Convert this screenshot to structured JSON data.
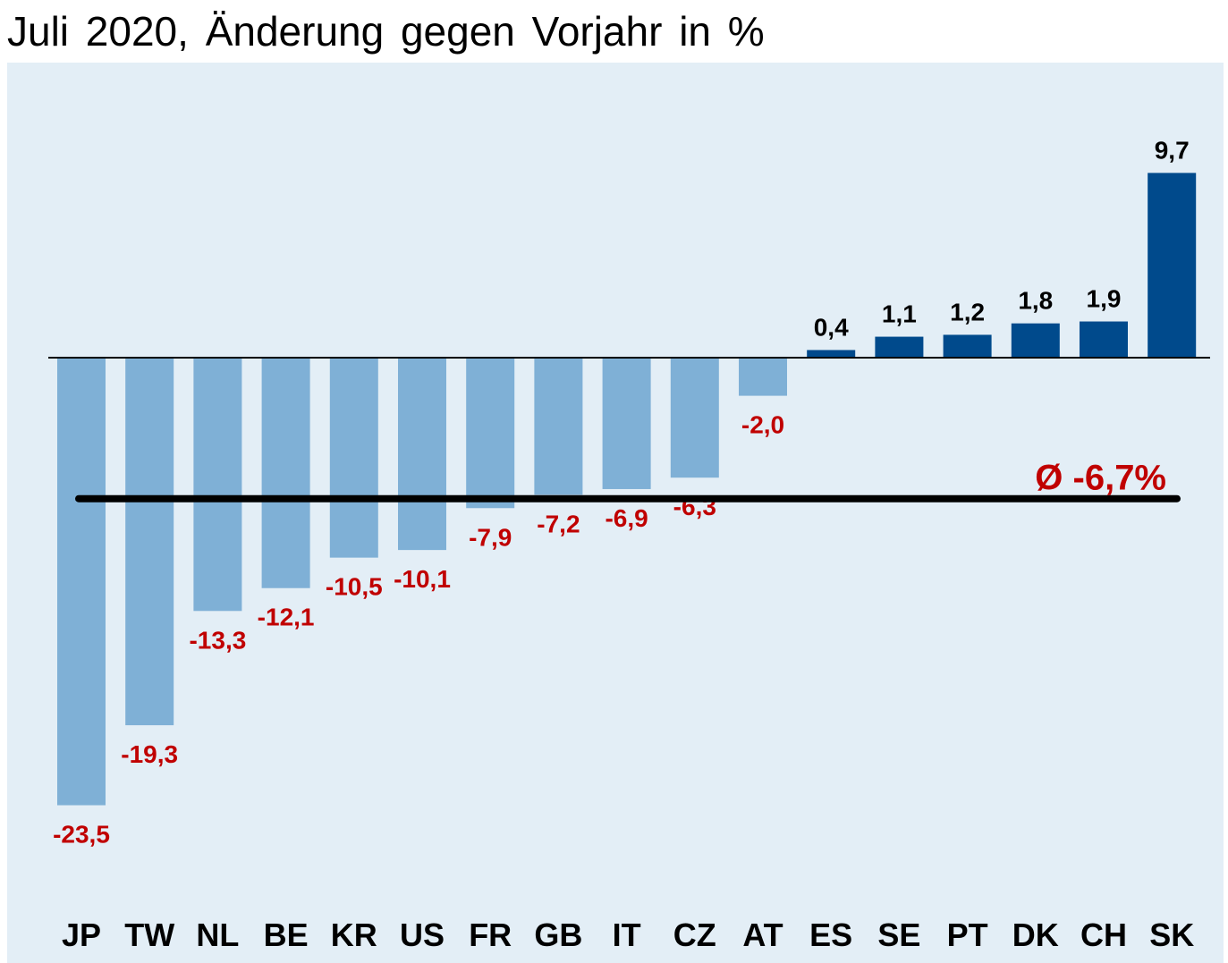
{
  "chart_data": {
    "type": "bar",
    "title": "Juli 2020, Änderung gegen Vorjahr in %",
    "categories": [
      "JP",
      "TW",
      "NL",
      "BE",
      "KR",
      "US",
      "FR",
      "GB",
      "IT",
      "CZ",
      "AT",
      "ES",
      "SE",
      "PT",
      "DK",
      "CH",
      "SK"
    ],
    "values": [
      -23.5,
      -19.3,
      -13.3,
      -12.1,
      -10.5,
      -10.1,
      -7.9,
      -7.2,
      -6.9,
      -6.3,
      -2.0,
      0.4,
      1.1,
      1.2,
      1.8,
      1.9,
      9.7
    ],
    "value_labels": [
      "-23,5",
      "-19,3",
      "-13,3",
      "-12,1",
      "-10,5",
      "-10,1",
      "-7,9",
      "-7,2",
      "-6,9",
      "-6,3",
      "-2,0",
      "0,4",
      "1,1",
      "1,2",
      "1,8",
      "1,9",
      "9,7"
    ],
    "average": {
      "value": -6.7,
      "label": "Ø -6,7%"
    },
    "ylim": [
      -24.5,
      12.5
    ],
    "xlabel": "",
    "ylabel": "",
    "grid": false,
    "legend": "none",
    "colors": {
      "negative_bar": "#7fb0d6",
      "positive_bar": "#004a8c",
      "negative_label": "#c00000",
      "positive_label": "#000000",
      "average_label": "#c00000",
      "average_line": "#000000",
      "plot_background": "#e3eef6"
    }
  }
}
